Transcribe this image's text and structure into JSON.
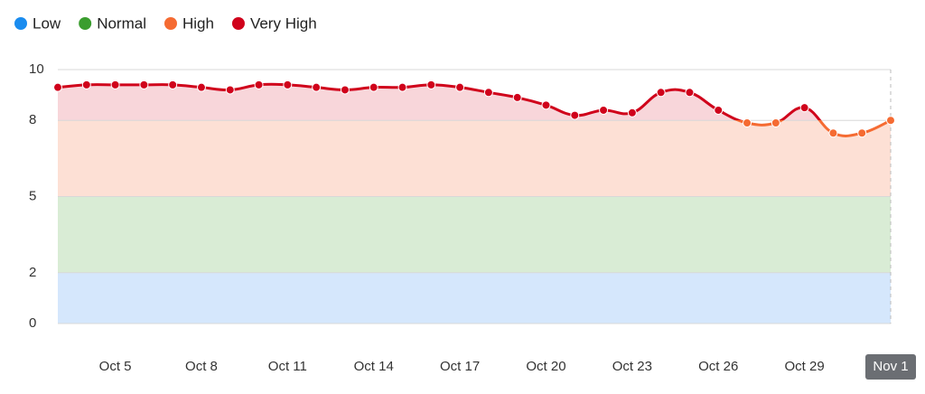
{
  "chart_data": {
    "type": "line",
    "categories": [
      null,
      null,
      "Oct 5",
      null,
      null,
      "Oct 8",
      null,
      null,
      "Oct 11",
      null,
      null,
      "Oct 14",
      null,
      null,
      "Oct 17",
      null,
      null,
      "Oct 20",
      null,
      null,
      "Oct 23",
      null,
      null,
      "Oct 26",
      null,
      null,
      "Oct 29",
      null,
      null,
      "Nov 1"
    ],
    "values": [
      9.3,
      9.4,
      9.4,
      9.4,
      9.4,
      9.3,
      9.2,
      9.4,
      9.4,
      9.3,
      9.2,
      9.3,
      9.3,
      9.4,
      9.3,
      9.1,
      8.9,
      8.6,
      8.2,
      8.4,
      8.3,
      9.1,
      9.1,
      8.4,
      7.9,
      7.9,
      8.5,
      7.5,
      7.5,
      8.0
    ],
    "ylim": [
      0,
      10
    ],
    "yticks": [
      0,
      2,
      5,
      8,
      10
    ],
    "grid": true,
    "legend": "top-left",
    "bands": [
      {
        "name": "Low",
        "color": "#1a8cef",
        "fill": "#d5e7fc",
        "range": [
          0,
          2
        ]
      },
      {
        "name": "Normal",
        "color": "#3a9d2e",
        "fill": "#d9ecd5",
        "range": [
          2,
          5
        ]
      },
      {
        "name": "High",
        "color": "#f56b32",
        "fill": "#fde0d5",
        "range": [
          5,
          8
        ]
      },
      {
        "name": "Very High",
        "color": "#d0021b",
        "fill": "#f8d6da",
        "range": [
          8,
          10
        ]
      }
    ]
  }
}
